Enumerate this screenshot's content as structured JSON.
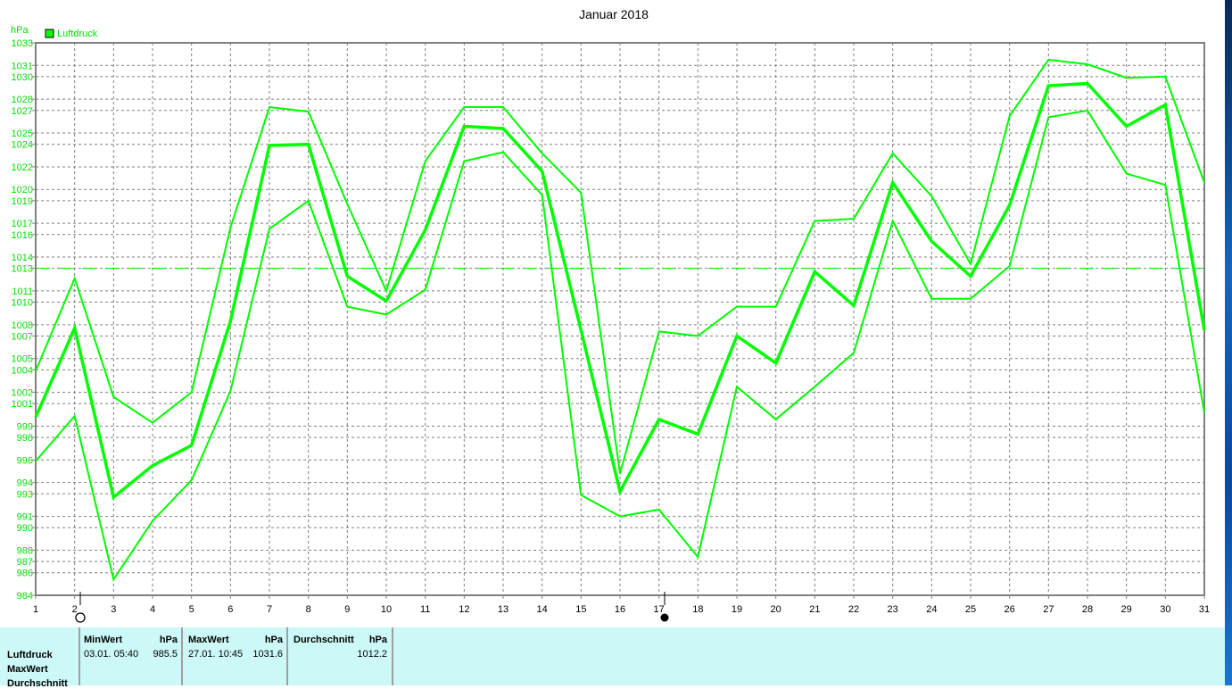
{
  "chart_data": {
    "type": "line",
    "title": "Januar 2018",
    "ylabel": "hPa",
    "legend": [
      {
        "label": "Luftdruck",
        "color": "#00ff00"
      }
    ],
    "legend_placement": "top-left",
    "grid": true,
    "reference_line": 1013,
    "ylim": [
      984,
      1033
    ],
    "xlim": [
      1,
      31
    ],
    "yticks": [
      1033,
      1031,
      1030,
      1028,
      1027,
      1025,
      1024,
      1022,
      1020,
      1019,
      1017,
      1016,
      1014,
      1013,
      1011,
      1010,
      1008,
      1007,
      1005,
      1004,
      1002,
      1001,
      999,
      998,
      996,
      994,
      993,
      991,
      990,
      988,
      987,
      986,
      984
    ],
    "x": [
      1,
      2,
      3,
      4,
      5,
      6,
      7,
      8,
      9,
      10,
      11,
      12,
      13,
      14,
      15,
      16,
      17,
      18,
      19,
      20,
      21,
      22,
      23,
      24,
      25,
      26,
      27,
      28,
      29,
      30,
      31
    ],
    "series": [
      {
        "role": "max",
        "values": [
          1003.9,
          1012.1,
          1001.6,
          999.3,
          1002.0,
          1016.6,
          1027.3,
          1026.9,
          1018.7,
          1011.0,
          1022.5,
          1027.3,
          1027.3,
          1023.2,
          1019.7,
          994.8,
          1007.4,
          1007.0,
          1009.6,
          1009.6,
          1017.2,
          1017.4,
          1023.2,
          1019.4,
          1013.4,
          1026.5,
          1031.5,
          1031.1,
          1029.9,
          1030.0,
          1020.6
        ]
      },
      {
        "role": "average",
        "values": [
          999.8,
          1007.7,
          992.7,
          995.5,
          997.3,
          1008.3,
          1023.9,
          1024.0,
          1012.3,
          1010.1,
          1016.4,
          1025.6,
          1025.4,
          1021.6,
          1007.5,
          993.2,
          999.6,
          998.3,
          1007.0,
          1004.6,
          1012.7,
          1009.7,
          1020.6,
          1015.4,
          1012.3,
          1018.6,
          1029.2,
          1029.4,
          1025.6,
          1027.5,
          1007.5
        ]
      },
      {
        "role": "min",
        "values": [
          995.9,
          999.9,
          985.4,
          990.6,
          994.2,
          1002.1,
          1016.5,
          1019.0,
          1009.6,
          1008.9,
          1011.1,
          1022.5,
          1023.3,
          1019.5,
          992.9,
          991.0,
          991.6,
          987.4,
          1002.5,
          999.6,
          1002.5,
          1005.5,
          1017.2,
          1010.3,
          1010.3,
          1013.2,
          1026.4,
          1027.0,
          1021.4,
          1020.4,
          1000.2
        ]
      }
    ],
    "colors": {
      "series": "#00ff00",
      "grid": "#808080",
      "axis": "#808080",
      "ytick_text": "#00e000"
    }
  },
  "stats": {
    "row_labels": [
      "Luftdruck",
      "MaxWert",
      "Durchschnitt"
    ],
    "min": {
      "header": "MinWert",
      "unit": "hPa",
      "time": "03.01.  05:40",
      "value": "985.5"
    },
    "max": {
      "header": "MaxWert",
      "unit": "hPa",
      "time": "27.01.  10:45",
      "value": "1031.6"
    },
    "avg": {
      "header": "Durchschnitt",
      "unit": "hPa",
      "value": "1012.2"
    }
  },
  "colors": {
    "panel_bg": "#ccf8f8"
  }
}
